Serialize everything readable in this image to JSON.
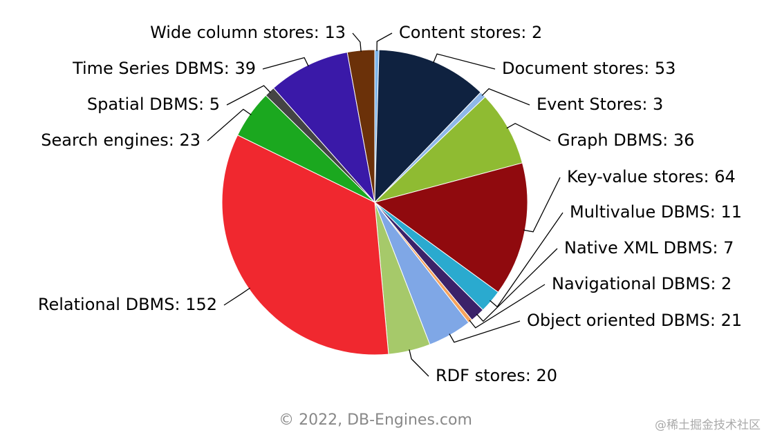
{
  "chart_data": {
    "type": "pie",
    "categories": [
      "Content stores: 2",
      "Document stores: 53",
      "Event Stores: 3",
      "Graph DBMS: 36",
      "Key-value stores: 64",
      "Multivalue DBMS: 11",
      "Native XML DBMS: 7",
      "Navigational DBMS: 2",
      "Object oriented DBMS: 21",
      "RDF stores: 20",
      "Relational DBMS: 152",
      "Search engines: 23",
      "Spatial DBMS: 5",
      "Time Series DBMS: 39",
      "Wide column stores: 13"
    ],
    "values": [
      2,
      53,
      3,
      36,
      64,
      11,
      7,
      2,
      21,
      20,
      152,
      23,
      5,
      39,
      13
    ],
    "colors": [
      "#7cb5ec",
      "#0f2240",
      "#8fb8e8",
      "#8fbb32",
      "#900a0e",
      "#2aaacf",
      "#3b2269",
      "#f7a35c",
      "#7fa7e6",
      "#a6c96a",
      "#f0282f",
      "#1ba81f",
      "#444444",
      "#3a19a8",
      "#6b3109"
    ],
    "footer": "© 2022, DB-Engines.com",
    "watermark": "@稀土掘金技术社区"
  }
}
